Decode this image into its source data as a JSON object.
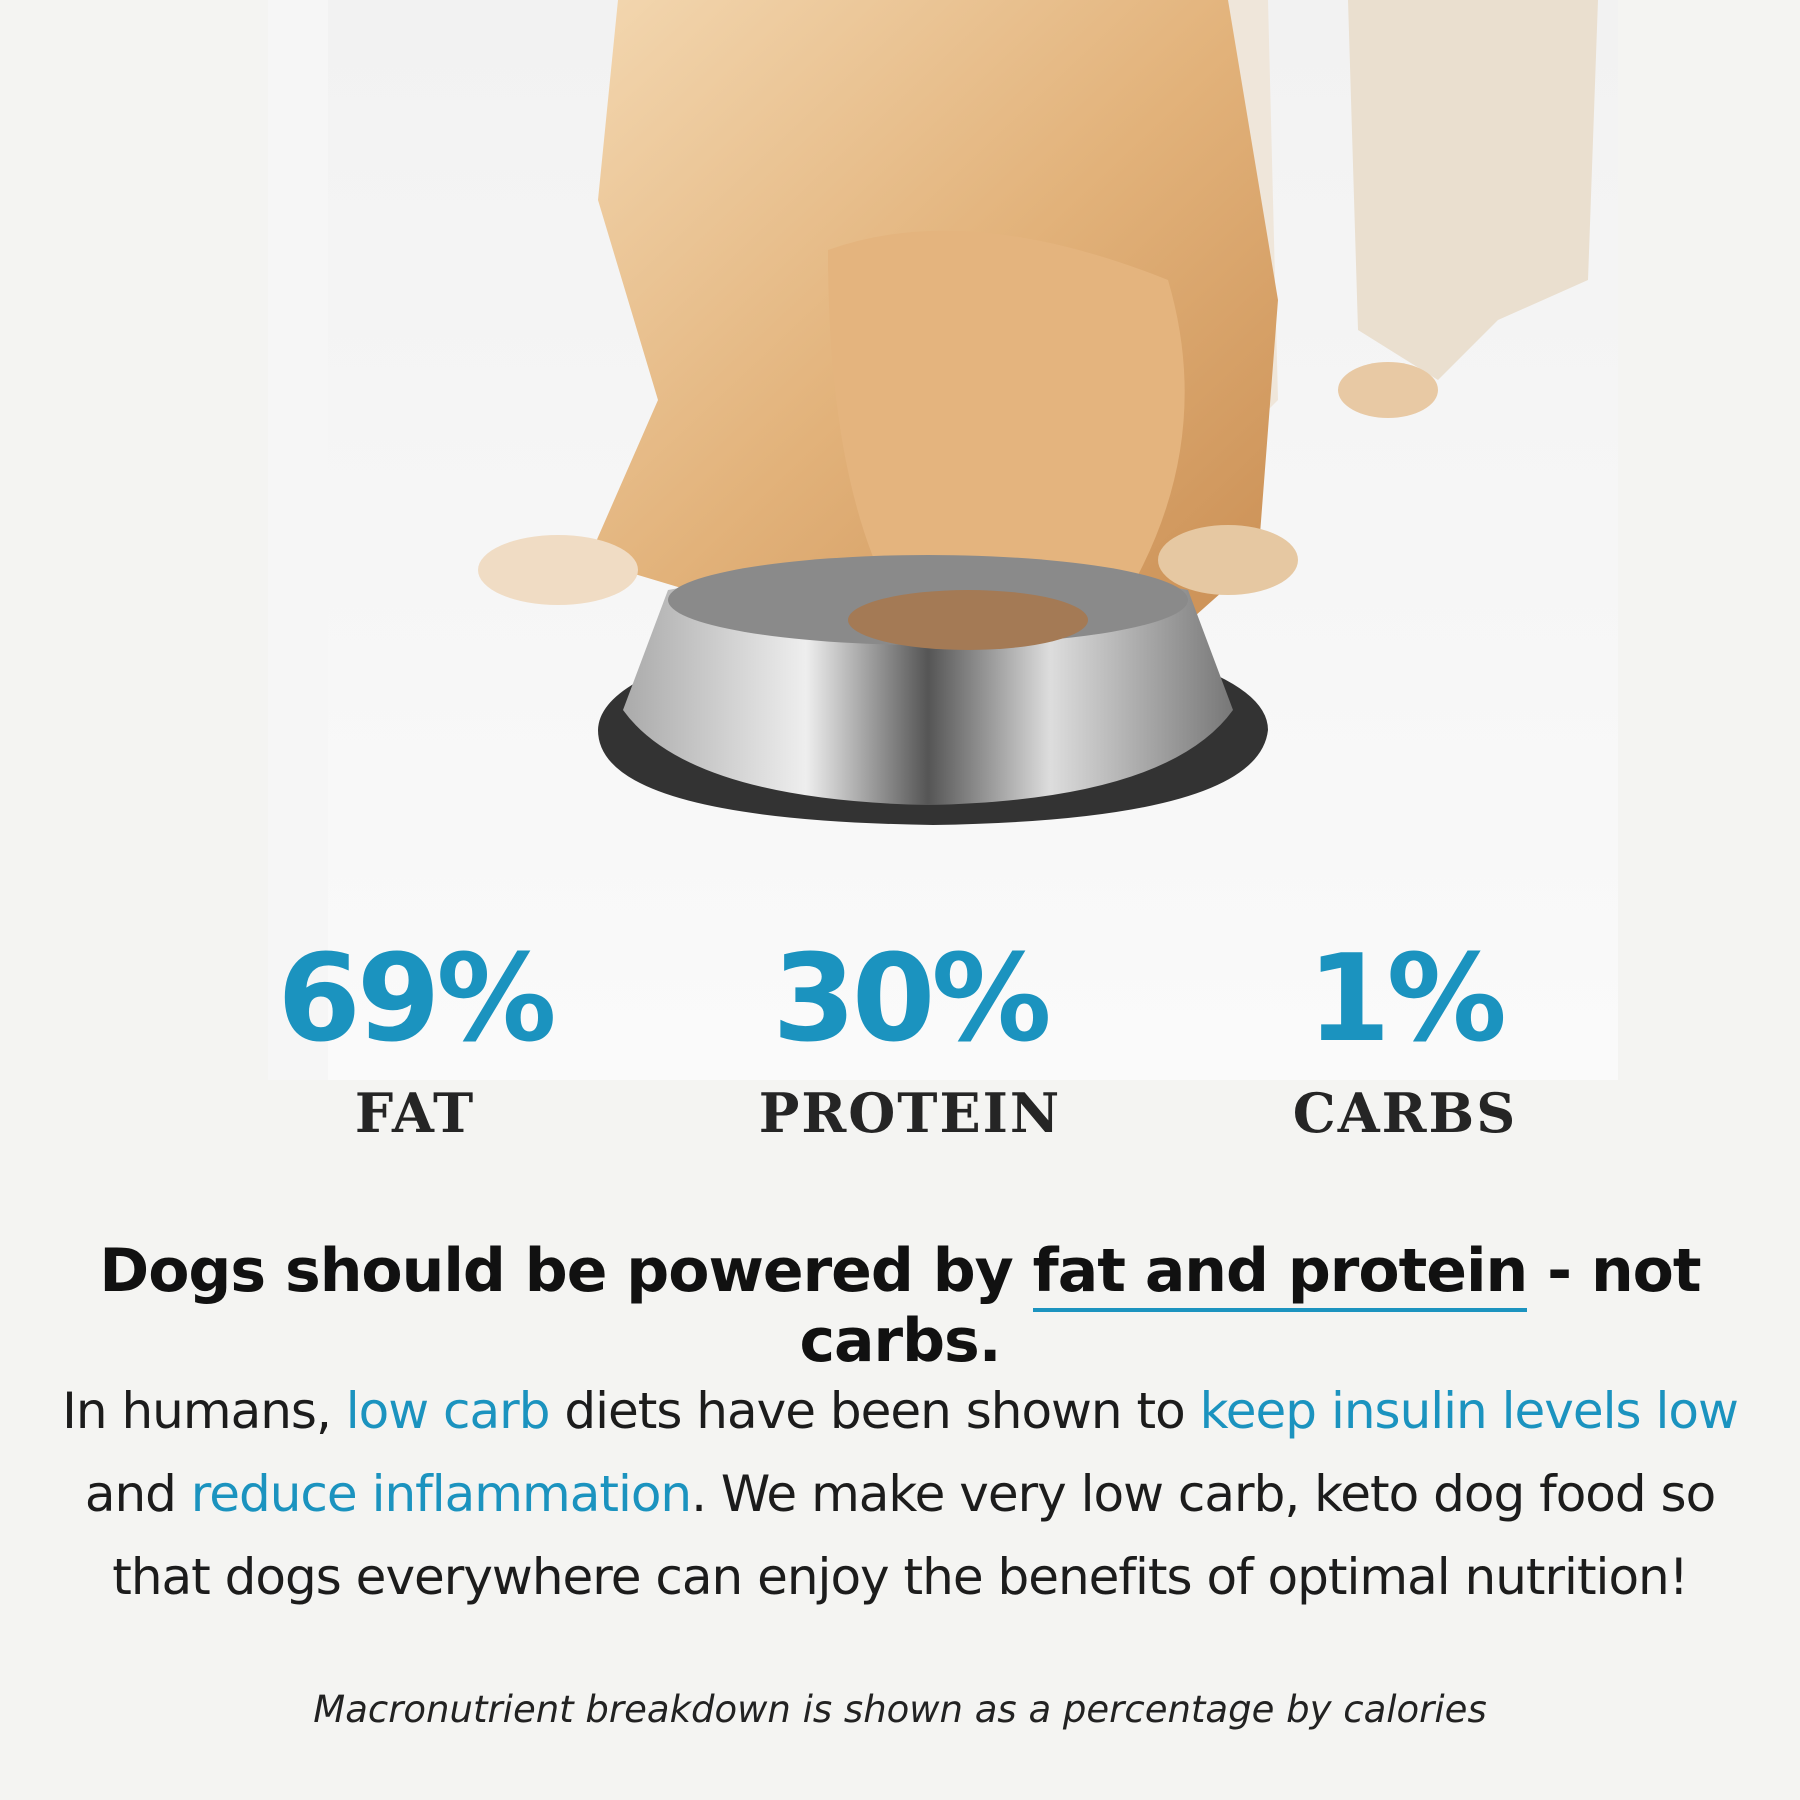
{
  "colors": {
    "accent": "#1b93bf",
    "text": "#1c1c1c",
    "background": "#f4f4f2"
  },
  "image": {
    "subject": "dog-eating-from-steel-bowl"
  },
  "stats": [
    {
      "value": "69%",
      "label": "FAT"
    },
    {
      "value": "30%",
      "label": "PROTEIN"
    },
    {
      "value": "1%",
      "label": "CARBS"
    }
  ],
  "headline": {
    "before": "Dogs should be powered by ",
    "underlined": "fat and protein",
    "after": " - not carbs."
  },
  "paragraph": {
    "p1": "In humans, ",
    "h1": "low carb",
    "p2": " diets have been shown to ",
    "h2": "keep insulin levels low",
    "p3": " and ",
    "h3": "reduce inflammation",
    "p4": ". We make very low carb, keto dog food so that dogs everywhere can enjoy the benefits of optimal nutrition!"
  },
  "footnote": "Macronutrient breakdown is shown as a percentage by calories"
}
